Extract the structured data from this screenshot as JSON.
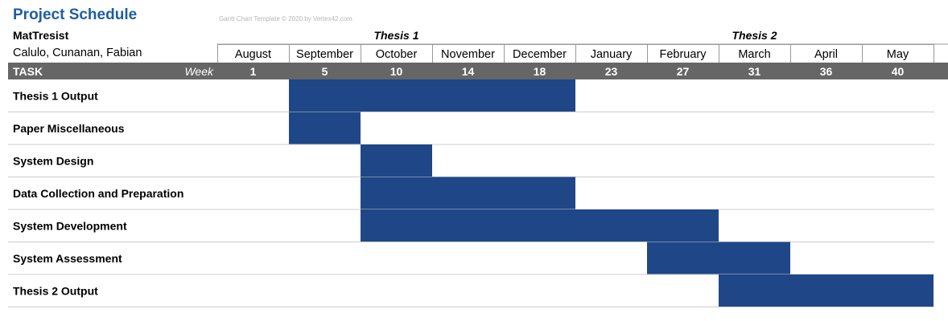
{
  "header": {
    "title": "Project Schedule",
    "credit": "Gantt Chart Template © 2020 by Vertex42.com",
    "team": "MatTresist",
    "members": "Calulo, Cunanan, Fabian",
    "task_label": "TASK",
    "week_label": "Week"
  },
  "phases": [
    "Thesis 1",
    "Thesis 2"
  ],
  "colors": {
    "bar": "#1f4788",
    "header_bg": "#666666",
    "title": "#1f5da0",
    "grid": "#cccccc"
  },
  "chart_data": {
    "type": "bar",
    "subtype": "gantt",
    "months": [
      "August",
      "September",
      "October",
      "November",
      "December",
      "January",
      "February",
      "March",
      "April",
      "May"
    ],
    "weeks": [
      1,
      5,
      10,
      14,
      18,
      23,
      27,
      31,
      36,
      40
    ],
    "tasks": [
      {
        "name": "Thesis 1 Output",
        "start": "September",
        "end": "December"
      },
      {
        "name": "Paper Miscellaneous",
        "start": "September",
        "end": "September"
      },
      {
        "name": "System Design",
        "start": "October",
        "end": "October"
      },
      {
        "name": "Data Collection and Preparation",
        "start": "October",
        "end": "December"
      },
      {
        "name": "System Development",
        "start": "October",
        "end": "February"
      },
      {
        "name": "System Assessment",
        "start": "February",
        "end": "March"
      },
      {
        "name": "Thesis 2 Output",
        "start": "March",
        "end": "May"
      }
    ]
  }
}
